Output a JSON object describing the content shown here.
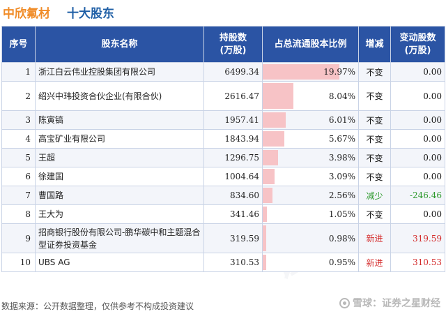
{
  "header": {
    "company": "中欣氟材",
    "subtitle": "十大股东"
  },
  "table": {
    "columns": [
      "序号",
      "股东名称",
      "持股数\n(万股)",
      "占总流通股本比例",
      "增减",
      "变动股数\n(万股)"
    ],
    "rows": [
      {
        "index": "1",
        "name": "浙江白云伟业控股集团有限公司",
        "shares": "6499.34",
        "ratio": "19.97%",
        "ratio_value": 19.97,
        "change": "不变",
        "change_type": "none",
        "delta": "0.00"
      },
      {
        "index": "2",
        "name": "绍兴中玮投资合伙企业(有限合伙)",
        "shares": "2616.47",
        "ratio": "8.04%",
        "ratio_value": 8.04,
        "change": "不变",
        "change_type": "none",
        "delta": "0.00"
      },
      {
        "index": "3",
        "name": "陈寅镐",
        "shares": "1957.41",
        "ratio": "6.01%",
        "ratio_value": 6.01,
        "change": "不变",
        "change_type": "none",
        "delta": "0.00"
      },
      {
        "index": "4",
        "name": "高宝矿业有限公司",
        "shares": "1843.94",
        "ratio": "5.67%",
        "ratio_value": 5.67,
        "change": "不变",
        "change_type": "none",
        "delta": "0.00"
      },
      {
        "index": "5",
        "name": "王超",
        "shares": "1296.75",
        "ratio": "3.98%",
        "ratio_value": 3.98,
        "change": "不变",
        "change_type": "none",
        "delta": "0.00"
      },
      {
        "index": "6",
        "name": "徐建国",
        "shares": "1004.64",
        "ratio": "3.09%",
        "ratio_value": 3.09,
        "change": "不变",
        "change_type": "none",
        "delta": "0.00"
      },
      {
        "index": "7",
        "name": "曹国路",
        "shares": "834.60",
        "ratio": "2.56%",
        "ratio_value": 2.56,
        "change": "减少",
        "change_type": "down",
        "delta": "-246.46"
      },
      {
        "index": "8",
        "name": "王大为",
        "shares": "341.46",
        "ratio": "1.05%",
        "ratio_value": 1.05,
        "change": "不变",
        "change_type": "none",
        "delta": "0.00"
      },
      {
        "index": "9",
        "name": "招商银行股份有限公司-鹏华碳中和主题混合型证券投资基金",
        "shares": "319.59",
        "ratio": "0.98%",
        "ratio_value": 0.98,
        "change": "新进",
        "change_type": "up",
        "delta": "319.59"
      },
      {
        "index": "10",
        "name": "UBS AG",
        "shares": "310.53",
        "ratio": "0.95%",
        "ratio_value": 0.95,
        "change": "新进",
        "change_type": "up",
        "delta": "310.53"
      }
    ]
  },
  "footer": {
    "source": "数据来源：公开数据整理，仅供参考不构成投资建议",
    "brand": "雪球：证券之星财经"
  },
  "colors": {
    "header_bg": "#2b54a4",
    "company_title": "#f08c28",
    "subtitle": "#1f5fa6",
    "ratio_bar": "#f7c3c6",
    "increase": "#d42b2b",
    "decrease": "#2e9a2e"
  }
}
